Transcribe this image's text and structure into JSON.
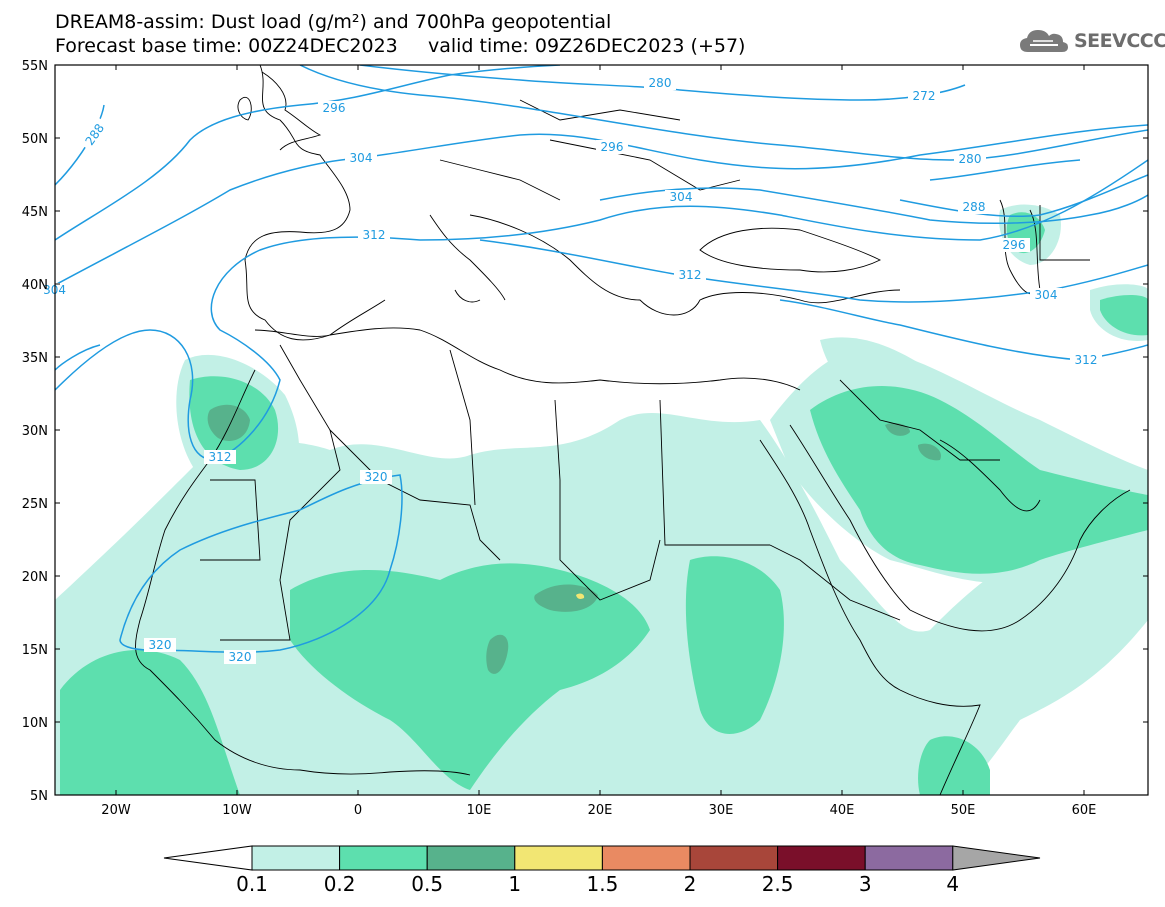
{
  "header": {
    "title_line1": "DREAM8-assim: Dust load (g/m²) and 700hPa geopotential",
    "title_line2": "Forecast base time: 00Z24DEC2023     valid time: 09Z26DEC2023 (+57)",
    "logo_text": "SEEVCCC",
    "logo_icon": "cloud-icon"
  },
  "map": {
    "lon_range": [
      -25,
      65
    ],
    "lat_range": [
      5,
      55
    ],
    "lat_labels": [
      "55N",
      "50N",
      "45N",
      "40N",
      "35N",
      "30N",
      "25N",
      "20N",
      "15N",
      "10N",
      "5N"
    ],
    "lon_labels": [
      "20W",
      "10W",
      "0",
      "10E",
      "20E",
      "30E",
      "40E",
      "50E",
      "60E"
    ],
    "contour_color": "#1f9be0",
    "contour_labels": [
      "288",
      "296",
      "304",
      "312",
      "320",
      "280",
      "272",
      "296",
      "304",
      "312",
      "280",
      "288",
      "296",
      "304",
      "312",
      "320",
      "320",
      "312"
    ]
  },
  "colorbar": {
    "labels": [
      "0.1",
      "0.2",
      "0.5",
      "1",
      "1.5",
      "2",
      "2.5",
      "3",
      "4"
    ],
    "colors": [
      "#c2f0e6",
      "#5ddfae",
      "#57b28c",
      "#f2e673",
      "#e98a62",
      "#a8463a",
      "#7a0f2a",
      "#8c6aa0"
    ],
    "under_color": "#ffffff",
    "over_color": "#a6a6a6"
  }
}
